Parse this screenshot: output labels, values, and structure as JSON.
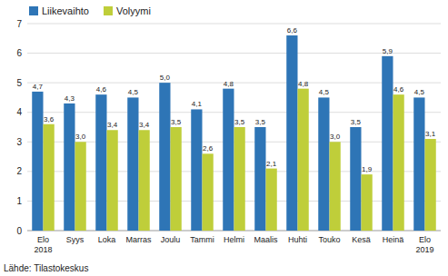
{
  "chart_data": {
    "type": "bar",
    "categories": [
      "Elo\n2018",
      "Syys",
      "Loka",
      "Marras",
      "Joulu",
      "Tammi",
      "Helmi",
      "Maalis",
      "Huhti",
      "Touko",
      "Kesä",
      "Heinä",
      "Elo\n2019"
    ],
    "series": [
      {
        "name": "Liikevaihto",
        "color": "#2E75B6",
        "values": [
          4.7,
          4.3,
          4.6,
          4.5,
          5.0,
          4.1,
          4.8,
          3.5,
          6.6,
          4.5,
          3.5,
          5.9,
          4.5
        ],
        "value_labels": [
          "4,7",
          "4,3",
          "4,6",
          "4,5",
          "5,0",
          "4,1",
          "4,8",
          "3,5",
          "6,6",
          "4,5",
          "3,5",
          "5,9",
          "4,5"
        ]
      },
      {
        "name": "Volyymi",
        "color": "#BFCE3A",
        "values": [
          3.6,
          3.0,
          3.4,
          3.4,
          3.5,
          2.6,
          3.5,
          2.1,
          4.8,
          3.0,
          1.9,
          4.6,
          3.1
        ],
        "value_labels": [
          "3,6",
          "3,0",
          "3,4",
          "3,4",
          "3,5",
          "2,6",
          "3,5",
          "2,1",
          "4,8",
          "3,0",
          "1,9",
          "4,6",
          "3,1"
        ]
      }
    ],
    "ylim": [
      0,
      7
    ],
    "yticks": [
      0,
      1,
      2,
      3,
      4,
      5,
      6,
      7
    ],
    "grid": true,
    "legend": "upper left",
    "data_labels": true,
    "annotations": [
      "Lähde: Tilastokeskus"
    ]
  }
}
